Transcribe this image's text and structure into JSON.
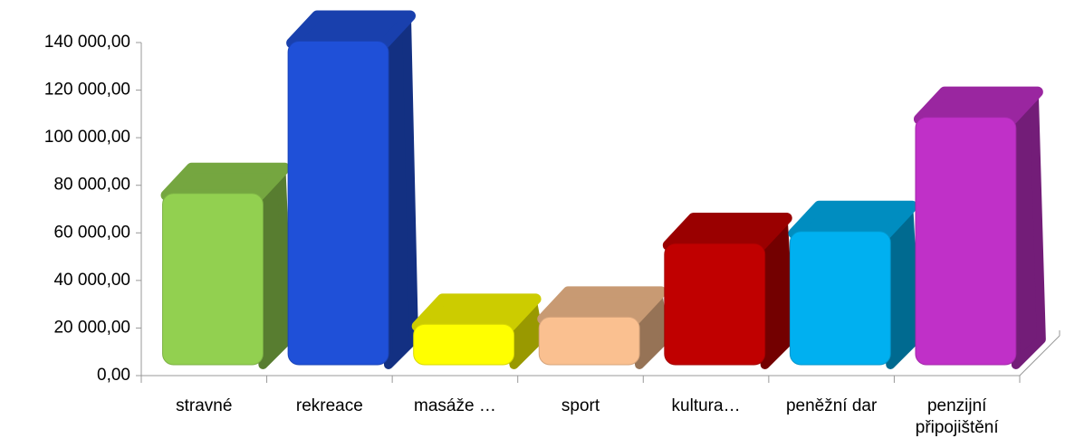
{
  "chart_data": {
    "type": "bar3d",
    "categories": [
      "stravné",
      "rekreace",
      "masáže …",
      "sport",
      "kultura…",
      "peněžní dar",
      "penzijní připojištění"
    ],
    "values": [
      72000,
      136000,
      17000,
      20000,
      51000,
      56000,
      104000
    ],
    "colors": [
      "#92d050",
      "#1f50d8",
      "#ffff00",
      "#fac090",
      "#c00000",
      "#00b0f0",
      "#c030c8"
    ],
    "ylim": [
      0,
      140000
    ],
    "yticks": [
      {
        "value": 0,
        "label": "0,00"
      },
      {
        "value": 20000,
        "label": "20 000,00"
      },
      {
        "value": 40000,
        "label": "40 000,00"
      },
      {
        "value": 60000,
        "label": "60 000,00"
      },
      {
        "value": 80000,
        "label": "80 000,00"
      },
      {
        "value": 100000,
        "label": "100 000,00"
      },
      {
        "value": 120000,
        "label": "120 000,00"
      },
      {
        "value": 140000,
        "label": "140 000,00"
      }
    ]
  }
}
